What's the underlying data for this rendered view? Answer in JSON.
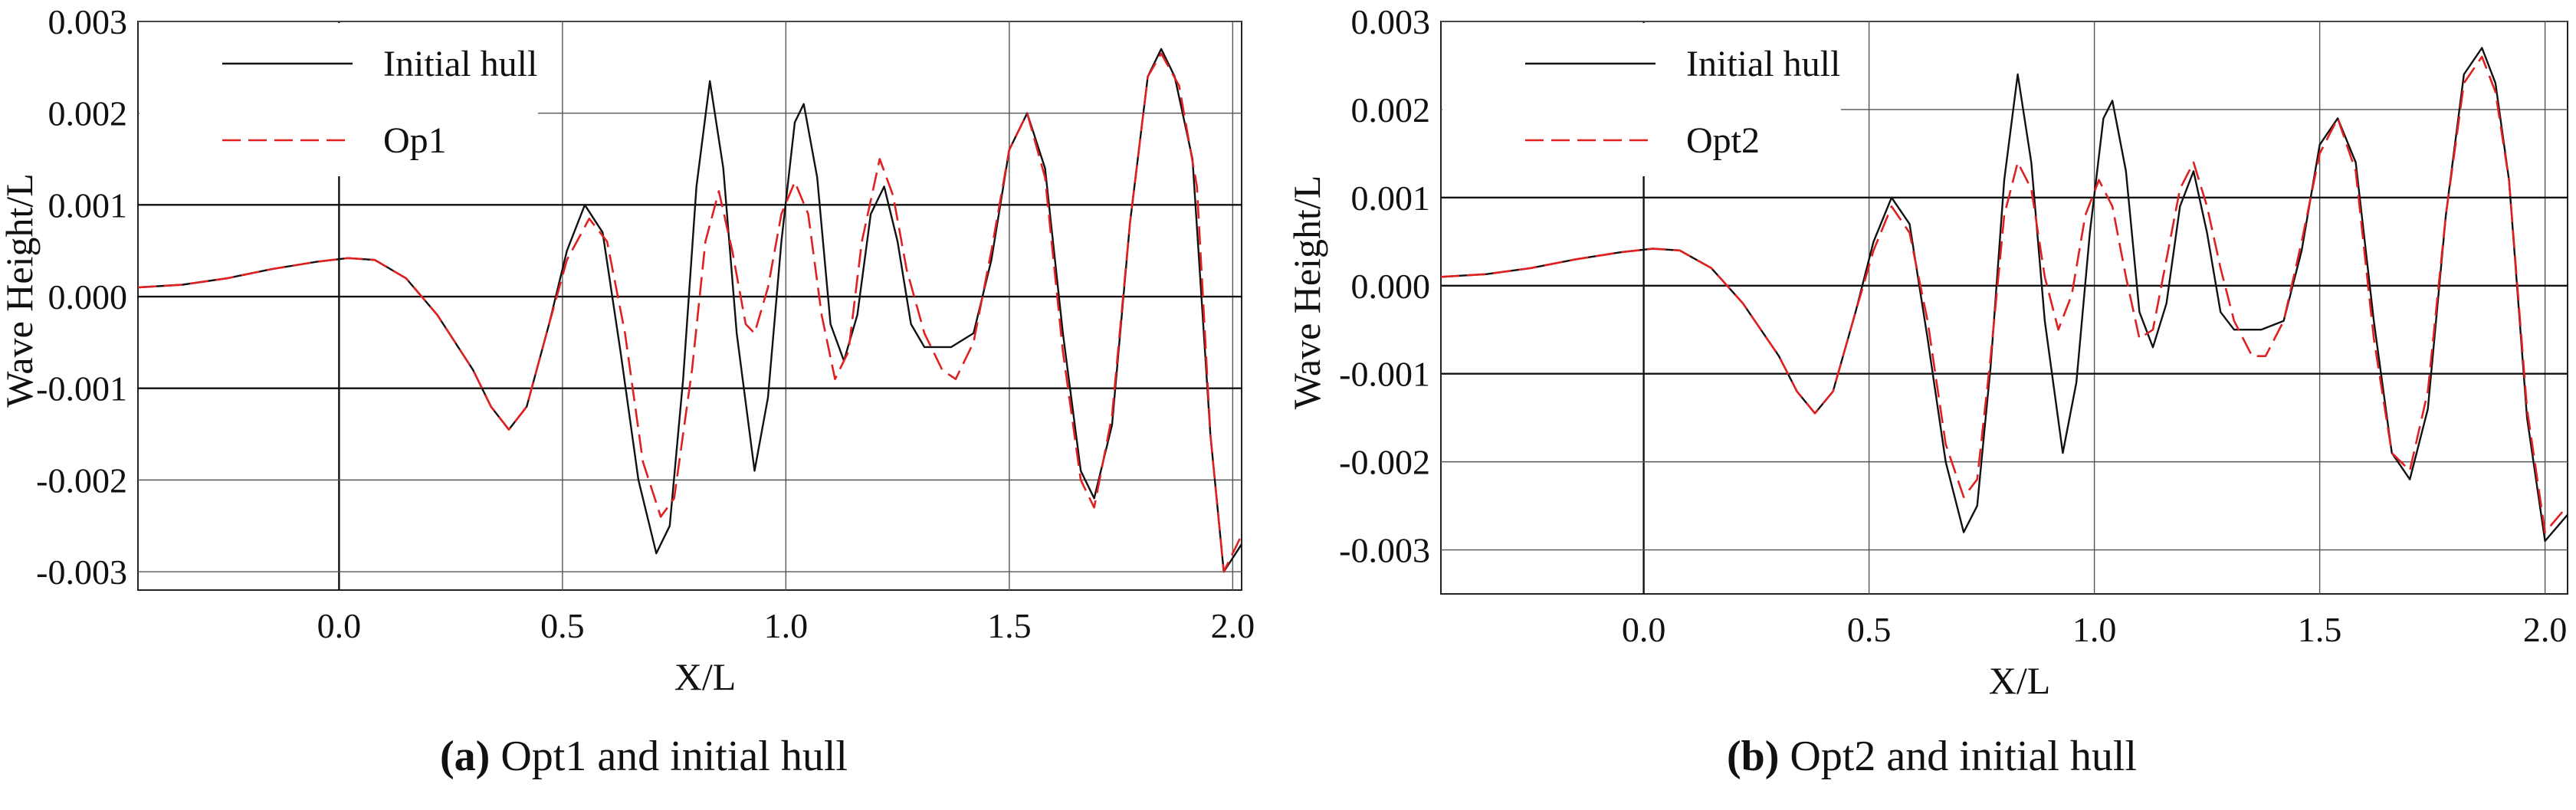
{
  "chart_data": [
    {
      "type": "line",
      "panel_label": "(a)",
      "caption": "Opt1 and initial hull",
      "xlabel": "X/L",
      "ylabel": "Wave Height/L",
      "xlim": [
        -0.45,
        2.02
      ],
      "ylim": [
        -0.0032,
        0.003
      ],
      "x_ticks": [
        0.0,
        0.5,
        1.0,
        1.5,
        2.0
      ],
      "x_tick_labels": [
        "0.0",
        "0.5",
        "1.0",
        "1.5",
        "2.0"
      ],
      "y_ticks": [
        0.003,
        0.002,
        0.001,
        0.0,
        -0.001,
        -0.002,
        -0.003
      ],
      "y_tick_labels": [
        "0.003",
        "0.002",
        "0.001",
        "0.000",
        "-0.001",
        "-0.002",
        "-0.003"
      ],
      "grid": true,
      "legend_position": "top-left",
      "series": [
        {
          "name": "Initial hull",
          "style": "solid",
          "color": "#111111",
          "points": [
            [
              -0.45,
              0.0001
            ],
            [
              -0.35,
              0.00013
            ],
            [
              -0.25,
              0.0002
            ],
            [
              -0.15,
              0.0003
            ],
            [
              -0.05,
              0.00038
            ],
            [
              0.02,
              0.00042
            ],
            [
              0.08,
              0.0004
            ],
            [
              0.15,
              0.0002
            ],
            [
              0.22,
              -0.0002
            ],
            [
              0.3,
              -0.0008
            ],
            [
              0.34,
              -0.0012
            ],
            [
              0.38,
              -0.00145
            ],
            [
              0.42,
              -0.0012
            ],
            [
              0.47,
              -0.0003
            ],
            [
              0.51,
              0.0005
            ],
            [
              0.55,
              0.001
            ],
            [
              0.59,
              0.0007
            ],
            [
              0.63,
              -0.0006
            ],
            [
              0.67,
              -0.002
            ],
            [
              0.71,
              -0.0028
            ],
            [
              0.74,
              -0.0025
            ],
            [
              0.77,
              -0.0009
            ],
            [
              0.8,
              0.0012
            ],
            [
              0.83,
              0.00235
            ],
            [
              0.86,
              0.0014
            ],
            [
              0.89,
              -0.0004
            ],
            [
              0.93,
              -0.0019
            ],
            [
              0.96,
              -0.0011
            ],
            [
              0.99,
              0.0006
            ],
            [
              1.02,
              0.0019
            ],
            [
              1.04,
              0.0021
            ],
            [
              1.07,
              0.0013
            ],
            [
              1.1,
              -0.0003
            ],
            [
              1.13,
              -0.0007
            ],
            [
              1.16,
              -0.0002
            ],
            [
              1.19,
              0.0009
            ],
            [
              1.22,
              0.0012
            ],
            [
              1.25,
              0.0006
            ],
            [
              1.28,
              -0.0003
            ],
            [
              1.31,
              -0.00055
            ],
            [
              1.37,
              -0.00055
            ],
            [
              1.42,
              -0.0004
            ],
            [
              1.46,
              0.0004
            ],
            [
              1.5,
              0.0016
            ],
            [
              1.54,
              0.002
            ],
            [
              1.58,
              0.0014
            ],
            [
              1.62,
              -0.0004
            ],
            [
              1.66,
              -0.0019
            ],
            [
              1.69,
              -0.0022
            ],
            [
              1.73,
              -0.0014
            ],
            [
              1.77,
              0.0008
            ],
            [
              1.81,
              0.0024
            ],
            [
              1.84,
              0.0027
            ],
            [
              1.87,
              0.0024
            ],
            [
              1.91,
              0.0015
            ],
            [
              1.95,
              -0.0015
            ],
            [
              1.98,
              -0.003
            ],
            [
              2.02,
              -0.0027
            ]
          ]
        },
        {
          "name": "Op1",
          "style": "dashed",
          "color": "#e02020",
          "points": [
            [
              -0.45,
              0.0001
            ],
            [
              -0.35,
              0.00013
            ],
            [
              -0.25,
              0.0002
            ],
            [
              -0.15,
              0.0003
            ],
            [
              -0.05,
              0.00038
            ],
            [
              0.02,
              0.00042
            ],
            [
              0.08,
              0.0004
            ],
            [
              0.15,
              0.0002
            ],
            [
              0.22,
              -0.0002
            ],
            [
              0.3,
              -0.0008
            ],
            [
              0.34,
              -0.0012
            ],
            [
              0.38,
              -0.00145
            ],
            [
              0.42,
              -0.0012
            ],
            [
              0.47,
              -0.0003
            ],
            [
              0.51,
              0.0004
            ],
            [
              0.56,
              0.00085
            ],
            [
              0.6,
              0.0006
            ],
            [
              0.64,
              -0.0004
            ],
            [
              0.68,
              -0.0018
            ],
            [
              0.72,
              -0.0024
            ],
            [
              0.75,
              -0.0022
            ],
            [
              0.79,
              -0.0008
            ],
            [
              0.82,
              0.0006
            ],
            [
              0.85,
              0.00115
            ],
            [
              0.88,
              0.0005
            ],
            [
              0.91,
              -0.0003
            ],
            [
              0.93,
              -0.0004
            ],
            [
              0.96,
              0.0001
            ],
            [
              0.99,
              0.0009
            ],
            [
              1.02,
              0.00125
            ],
            [
              1.05,
              0.0009
            ],
            [
              1.08,
              -0.0002
            ],
            [
              1.11,
              -0.0009
            ],
            [
              1.14,
              -0.0006
            ],
            [
              1.17,
              0.0006
            ],
            [
              1.21,
              0.0015
            ],
            [
              1.24,
              0.0011
            ],
            [
              1.27,
              0.0003
            ],
            [
              1.31,
              -0.0004
            ],
            [
              1.35,
              -0.0008
            ],
            [
              1.38,
              -0.0009
            ],
            [
              1.42,
              -0.0005
            ],
            [
              1.46,
              0.0005
            ],
            [
              1.5,
              0.0016
            ],
            [
              1.54,
              0.002
            ],
            [
              1.58,
              0.0013
            ],
            [
              1.62,
              -0.0006
            ],
            [
              1.66,
              -0.002
            ],
            [
              1.69,
              -0.0023
            ],
            [
              1.73,
              -0.0013
            ],
            [
              1.77,
              0.0008
            ],
            [
              1.81,
              0.0024
            ],
            [
              1.84,
              0.00265
            ],
            [
              1.88,
              0.0023
            ],
            [
              1.92,
              0.0012
            ],
            [
              1.95,
              -0.0015
            ],
            [
              1.98,
              -0.003
            ],
            [
              2.02,
              -0.0026
            ]
          ]
        }
      ]
    },
    {
      "type": "line",
      "panel_label": "(b)",
      "caption": "Opt2 and initial hull",
      "xlabel": "X/L",
      "ylabel": "Wave Height/L",
      "xlim": [
        -0.45,
        2.05
      ],
      "ylim": [
        -0.0035,
        0.003
      ],
      "x_ticks": [
        0.0,
        0.5,
        1.0,
        1.5,
        2.0
      ],
      "x_tick_labels": [
        "0.0",
        "0.5",
        "1.0",
        "1.5",
        "2.0"
      ],
      "y_ticks": [
        0.003,
        0.002,
        0.001,
        0.0,
        -0.001,
        -0.002,
        -0.003
      ],
      "y_tick_labels": [
        "0.003",
        "0.002",
        "0.001",
        "0.000",
        "-0.001",
        "-0.002",
        "-0.003"
      ],
      "grid": true,
      "legend_position": "top-left",
      "series": [
        {
          "name": "Initial hull",
          "style": "solid",
          "color": "#111111",
          "points": [
            [
              -0.45,
              0.0001
            ],
            [
              -0.35,
              0.00013
            ],
            [
              -0.25,
              0.0002
            ],
            [
              -0.15,
              0.0003
            ],
            [
              -0.05,
              0.00038
            ],
            [
              0.02,
              0.00042
            ],
            [
              0.08,
              0.0004
            ],
            [
              0.15,
              0.0002
            ],
            [
              0.22,
              -0.0002
            ],
            [
              0.3,
              -0.0008
            ],
            [
              0.34,
              -0.0012
            ],
            [
              0.38,
              -0.00145
            ],
            [
              0.42,
              -0.0012
            ],
            [
              0.47,
              -0.0003
            ],
            [
              0.51,
              0.0005
            ],
            [
              0.55,
              0.001
            ],
            [
              0.59,
              0.0007
            ],
            [
              0.63,
              -0.0006
            ],
            [
              0.67,
              -0.002
            ],
            [
              0.71,
              -0.0028
            ],
            [
              0.74,
              -0.0025
            ],
            [
              0.77,
              -0.0009
            ],
            [
              0.8,
              0.0012
            ],
            [
              0.83,
              0.0024
            ],
            [
              0.86,
              0.0014
            ],
            [
              0.89,
              -0.0004
            ],
            [
              0.93,
              -0.0019
            ],
            [
              0.96,
              -0.0011
            ],
            [
              0.99,
              0.0006
            ],
            [
              1.02,
              0.0019
            ],
            [
              1.04,
              0.0021
            ],
            [
              1.07,
              0.0013
            ],
            [
              1.1,
              -0.0003
            ],
            [
              1.13,
              -0.0007
            ],
            [
              1.16,
              -0.0002
            ],
            [
              1.19,
              0.0009
            ],
            [
              1.22,
              0.0013
            ],
            [
              1.25,
              0.0006
            ],
            [
              1.28,
              -0.0003
            ],
            [
              1.31,
              -0.0005
            ],
            [
              1.37,
              -0.0005
            ],
            [
              1.42,
              -0.0004
            ],
            [
              1.46,
              0.0004
            ],
            [
              1.5,
              0.0016
            ],
            [
              1.54,
              0.0019
            ],
            [
              1.58,
              0.0014
            ],
            [
              1.62,
              -0.0004
            ],
            [
              1.66,
              -0.0019
            ],
            [
              1.7,
              -0.0022
            ],
            [
              1.74,
              -0.0014
            ],
            [
              1.78,
              0.0008
            ],
            [
              1.82,
              0.0024
            ],
            [
              1.86,
              0.0027
            ],
            [
              1.89,
              0.0023
            ],
            [
              1.92,
              0.0012
            ],
            [
              1.96,
              -0.0015
            ],
            [
              2.0,
              -0.0029
            ],
            [
              2.05,
              -0.0026
            ]
          ]
        },
        {
          "name": "Opt2",
          "style": "dashed",
          "color": "#e02020",
          "points": [
            [
              -0.45,
              0.0001
            ],
            [
              -0.35,
              0.00013
            ],
            [
              -0.25,
              0.0002
            ],
            [
              -0.15,
              0.0003
            ],
            [
              -0.05,
              0.00038
            ],
            [
              0.02,
              0.00042
            ],
            [
              0.08,
              0.0004
            ],
            [
              0.15,
              0.0002
            ],
            [
              0.22,
              -0.0002
            ],
            [
              0.3,
              -0.0008
            ],
            [
              0.34,
              -0.0012
            ],
            [
              0.38,
              -0.00145
            ],
            [
              0.42,
              -0.0012
            ],
            [
              0.47,
              -0.0003
            ],
            [
              0.51,
              0.0004
            ],
            [
              0.55,
              0.0009
            ],
            [
              0.59,
              0.0006
            ],
            [
              0.63,
              -0.0004
            ],
            [
              0.67,
              -0.0018
            ],
            [
              0.71,
              -0.0024
            ],
            [
              0.74,
              -0.0022
            ],
            [
              0.77,
              -0.0008
            ],
            [
              0.8,
              0.0008
            ],
            [
              0.83,
              0.0014
            ],
            [
              0.86,
              0.0011
            ],
            [
              0.89,
              0.0001
            ],
            [
              0.92,
              -0.0005
            ],
            [
              0.95,
              -0.0001
            ],
            [
              0.98,
              0.0008
            ],
            [
              1.01,
              0.0012
            ],
            [
              1.04,
              0.0009
            ],
            [
              1.07,
              0.0001
            ],
            [
              1.1,
              -0.0006
            ],
            [
              1.13,
              -0.0005
            ],
            [
              1.16,
              0.0003
            ],
            [
              1.19,
              0.0011
            ],
            [
              1.22,
              0.0014
            ],
            [
              1.25,
              0.0009
            ],
            [
              1.28,
              0.0002
            ],
            [
              1.31,
              -0.0004
            ],
            [
              1.35,
              -0.0008
            ],
            [
              1.38,
              -0.0008
            ],
            [
              1.42,
              -0.0004
            ],
            [
              1.46,
              0.0005
            ],
            [
              1.5,
              0.0015
            ],
            [
              1.54,
              0.0019
            ],
            [
              1.58,
              0.0013
            ],
            [
              1.62,
              -0.0006
            ],
            [
              1.66,
              -0.0019
            ],
            [
              1.7,
              -0.0021
            ],
            [
              1.74,
              -0.0012
            ],
            [
              1.78,
              0.0008
            ],
            [
              1.82,
              0.0023
            ],
            [
              1.86,
              0.0026
            ],
            [
              1.89,
              0.0022
            ],
            [
              1.92,
              0.0012
            ],
            [
              1.96,
              -0.0014
            ],
            [
              2.0,
              -0.0028
            ],
            [
              2.05,
              -0.0025
            ]
          ]
        }
      ]
    }
  ]
}
